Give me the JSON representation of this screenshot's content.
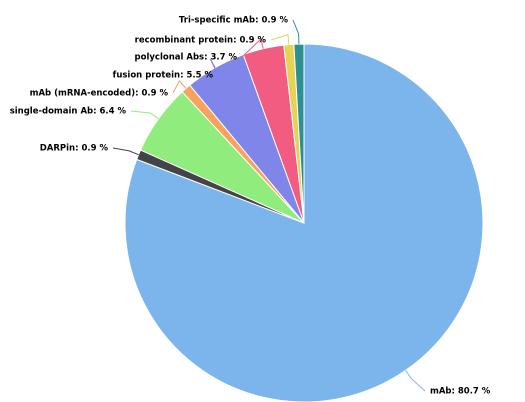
{
  "chart_data": {
    "type": "pie",
    "values": [
      80.7,
      0.9,
      6.4,
      0.9,
      5.5,
      3.7,
      0.9,
      0.9
    ],
    "value_labels": [
      "mAb: 80.7 %",
      "DARPin: 0.9 %",
      "single-domain Ab: 6.4 %",
      "mAb (mRNA-encoded): 0.9 %",
      "fusion protein: 5.5 %",
      "polyclonal Abs: 3.7 %",
      "recombinant protein: 0.9 %",
      "Tri-specific mAb: 0.9 %"
    ],
    "colors": [
      "#7cb5ec",
      "#434348",
      "#90ed7d",
      "#f7a35c",
      "#8085e9",
      "#f15c80",
      "#e4d354",
      "#2b908f"
    ]
  }
}
